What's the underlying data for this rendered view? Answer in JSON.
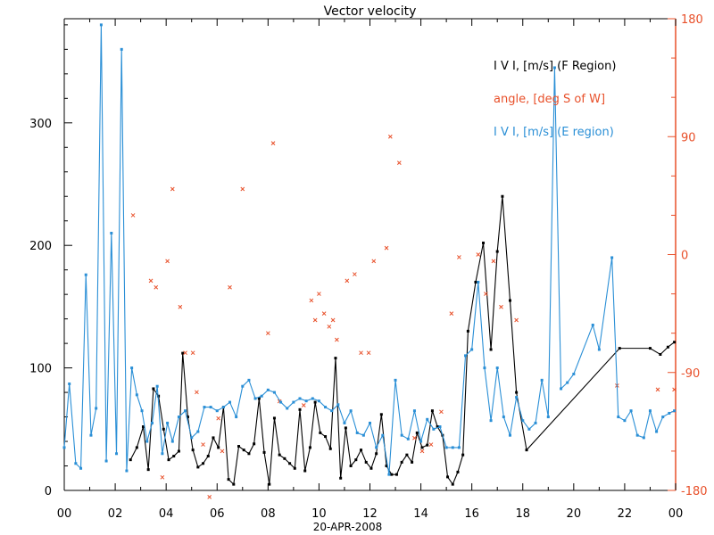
{
  "chart_data": {
    "type": "line",
    "title": "Vector velocity",
    "xlabel": "20-APR-2008",
    "x_ticks": [
      "00",
      "02",
      "04",
      "06",
      "08",
      "10",
      "12",
      "14",
      "16",
      "18",
      "20",
      "22",
      "00"
    ],
    "xlim": [
      0,
      24
    ],
    "ylim_left": [
      0,
      385
    ],
    "y_ticks_left": [
      "0",
      "100",
      "200",
      "300"
    ],
    "ylim_right": [
      -180,
      180
    ],
    "y_ticks_right": [
      "-180",
      "-90",
      "0",
      "90",
      "180"
    ],
    "legend_position": "top-right",
    "colors": {
      "f_region": "#000000",
      "angle": "#e8502a",
      "e_region": "#2a8fd6",
      "axis_left": "#000000",
      "axis_right": "#e8502a"
    },
    "series": [
      {
        "name": "I V I, [m/s] (F Region)",
        "color": "#000000",
        "axis": "left",
        "style": "line-markers",
        "x": [
          2.6,
          2.85,
          3.1,
          3.3,
          3.5,
          3.7,
          3.9,
          4.1,
          4.3,
          4.5,
          4.65,
          4.85,
          5.05,
          5.25,
          5.45,
          5.65,
          5.85,
          6.05,
          6.25,
          6.45,
          6.65,
          6.85,
          7.05,
          7.25,
          7.45,
          7.65,
          7.85,
          8.05,
          8.25,
          8.45,
          8.65,
          8.85,
          9.05,
          9.25,
          9.45,
          9.65,
          9.85,
          10.05,
          10.25,
          10.45,
          10.65,
          10.85,
          11.05,
          11.25,
          11.45,
          11.65,
          11.85,
          12.05,
          12.25,
          12.45,
          12.65,
          12.85,
          13.05,
          13.25,
          13.45,
          13.65,
          13.85,
          14.05,
          14.25,
          14.45,
          14.65,
          14.85,
          15.05,
          15.25,
          15.45,
          15.65,
          15.85,
          16.15,
          16.45,
          16.75,
          17.0,
          17.2,
          17.5,
          17.75,
          18.15,
          21.8,
          23.0,
          23.4,
          23.7,
          23.95
        ],
        "y": [
          25,
          35,
          52,
          17,
          83,
          77,
          50,
          25,
          28,
          32,
          112,
          60,
          33,
          19,
          22,
          28,
          43,
          35,
          68,
          9,
          5,
          36,
          33,
          30,
          38,
          75,
          31,
          5,
          59,
          29,
          26,
          22,
          18,
          66,
          16,
          35,
          72,
          47,
          44,
          34,
          108,
          10,
          51,
          20,
          25,
          33,
          23,
          18,
          30,
          62,
          20,
          13,
          13,
          23,
          29,
          23,
          47,
          35,
          37,
          65,
          52,
          45,
          11,
          5,
          15,
          29,
          130,
          170,
          202,
          115,
          195,
          240,
          155,
          80,
          33,
          116,
          116,
          111,
          117,
          121
        ]
      },
      {
        "name": "angle, [deg S of W]",
        "color": "#e8502a",
        "axis": "right",
        "style": "markers",
        "x": [
          2.7,
          3.4,
          3.6,
          3.85,
          4.05,
          4.25,
          4.55,
          4.75,
          5.05,
          5.2,
          5.45,
          5.7,
          6.05,
          6.2,
          6.5,
          7.0,
          8.0,
          8.2,
          8.45,
          9.4,
          9.7,
          9.85,
          10.0,
          10.2,
          10.4,
          10.55,
          10.7,
          11.1,
          11.4,
          11.65,
          11.95,
          12.15,
          12.65,
          12.8,
          13.15,
          13.75,
          14.05,
          14.4,
          14.8,
          15.2,
          15.5,
          16.25,
          16.55,
          16.85,
          17.15,
          17.75,
          21.7,
          23.3,
          23.95
        ],
        "y": [
          30,
          -20,
          -25,
          -170,
          -5,
          50,
          -40,
          -75,
          -75,
          -105,
          -145,
          -185,
          -125,
          -150,
          -25,
          50,
          -60,
          85,
          -112,
          -115,
          -35,
          -50,
          -30,
          -45,
          -55,
          -50,
          -65,
          -20,
          -15,
          -75,
          -75,
          -5,
          5,
          90,
          70,
          -140,
          -150,
          -145,
          -120,
          -45,
          -2,
          0,
          -30,
          -5,
          -40,
          -50,
          -100,
          -103,
          -103
        ]
      },
      {
        "name": "I V I, [m/s] (E region)",
        "color": "#2a8fd6",
        "axis": "left",
        "style": "line-markers",
        "x": [
          0.0,
          0.2,
          0.45,
          0.65,
          0.85,
          1.05,
          1.25,
          1.45,
          1.65,
          1.85,
          2.05,
          2.25,
          2.45,
          2.65,
          2.85,
          3.05,
          3.25,
          3.45,
          3.65,
          3.85,
          4.05,
          4.25,
          4.5,
          4.75,
          5.0,
          5.25,
          5.5,
          5.75,
          6.0,
          6.25,
          6.5,
          6.75,
          7.0,
          7.25,
          7.5,
          7.75,
          8.0,
          8.25,
          8.5,
          8.75,
          9.0,
          9.25,
          9.5,
          9.75,
          10.0,
          10.25,
          10.5,
          10.75,
          11.0,
          11.25,
          11.5,
          11.75,
          12.0,
          12.25,
          12.5,
          12.75,
          13.0,
          13.25,
          13.5,
          13.75,
          14.0,
          14.25,
          14.5,
          14.75,
          15.0,
          15.25,
          15.5,
          15.75,
          16.0,
          16.25,
          16.5,
          16.75,
          17.0,
          17.25,
          17.5,
          17.75,
          18.0,
          18.25,
          18.5,
          18.75,
          19.0,
          19.25,
          19.5,
          19.75,
          20.0,
          20.75,
          21.0,
          21.5,
          21.75,
          22.0,
          22.25,
          22.5,
          22.75,
          23.0,
          23.25,
          23.5,
          23.75,
          23.95
        ],
        "y": [
          35,
          87,
          22,
          18,
          176,
          45,
          67,
          380,
          24,
          210,
          30,
          360,
          16,
          100,
          78,
          65,
          40,
          55,
          85,
          30,
          55,
          40,
          60,
          65,
          43,
          48,
          68,
          68,
          65,
          68,
          72,
          60,
          85,
          90,
          75,
          77,
          82,
          80,
          72,
          67,
          72,
          75,
          73,
          75,
          73,
          68,
          65,
          70,
          55,
          65,
          47,
          45,
          55,
          35,
          45,
          13,
          90,
          45,
          42,
          65,
          40,
          58,
          50,
          52,
          35,
          35,
          35,
          110,
          115,
          170,
          100,
          57,
          100,
          60,
          45,
          76,
          57,
          50,
          55,
          90,
          60,
          345,
          83,
          88,
          95,
          135,
          115,
          190,
          60,
          57,
          65,
          45,
          43,
          65,
          48,
          60,
          63,
          65
        ]
      }
    ]
  }
}
